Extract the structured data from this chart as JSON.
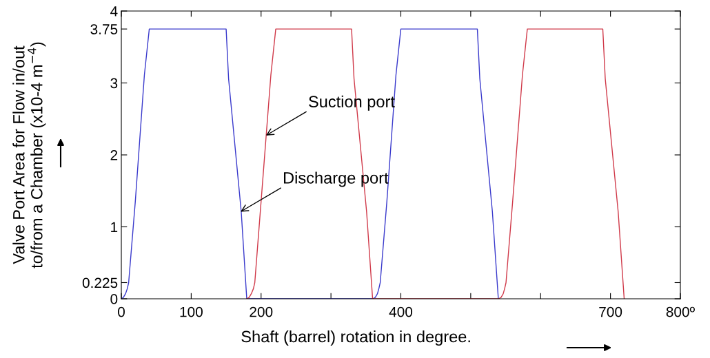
{
  "chart_data": {
    "type": "line",
    "xlabel": "Shaft (barrel) rotation in degree.",
    "ylabel": "Valve Port Area for Flow in/out\nto/from a Chamber (x10-4 m$^{−4}$)",
    "xlim": [
      0,
      800
    ],
    "ylim": [
      0,
      4
    ],
    "xticks": [
      0,
      100,
      200,
      {
        "value": 300,
        "label": null
      },
      400,
      {
        "value": 500,
        "label": null
      },
      {
        "value": 600,
        "label": null
      },
      700,
      {
        "value": 800,
        "label": "800º"
      }
    ],
    "yticks": [
      0,
      0.225,
      1,
      2,
      3,
      3.75,
      4
    ],
    "grid": false,
    "marker": "none",
    "line_style": "solid",
    "series": [
      {
        "color": "#3a3acc",
        "x": [
          0,
          3,
          6,
          8.5,
          10.5,
          20,
          33,
          40,
          150,
          153.5,
          171.6,
          179.5,
          180,
          360,
          363.5,
          366.5,
          368.5,
          370.5,
          380,
          393,
          400,
          509.5,
          513,
          531,
          539.5,
          540
        ],
        "values": [
          0,
          0.02,
          0.07,
          0.14,
          0.225,
          1.35,
          3.11,
          3.75,
          3.75,
          3.06,
          1.21,
          0,
          0,
          0,
          0.02,
          0.07,
          0.14,
          0.225,
          1.35,
          3.11,
          3.75,
          3.75,
          3.06,
          1.21,
          0,
          0
        ]
      },
      {
        "color": "#d03a4a",
        "x": [
          179.5,
          183,
          186,
          189,
          191,
          200,
          214,
          221,
          329.5,
          333,
          351,
          359.6,
          360,
          540,
          543.5,
          546.5,
          548.5,
          550.5,
          560,
          574,
          581,
          689,
          692.5,
          711,
          719.6
        ],
        "values": [
          0,
          0.02,
          0.07,
          0.14,
          0.225,
          1.35,
          3.11,
          3.75,
          3.75,
          3.06,
          1.21,
          0,
          0,
          0,
          0.02,
          0.07,
          0.14,
          0.225,
          1.35,
          3.11,
          3.75,
          3.75,
          3.06,
          1.21,
          0
        ]
      }
    ],
    "annotations": [
      {
        "text": "Suction port",
        "x": 207,
        "y": 2.27
      },
      {
        "text": "Discharge port",
        "x": 170.6,
        "y": 1.21
      }
    ]
  }
}
